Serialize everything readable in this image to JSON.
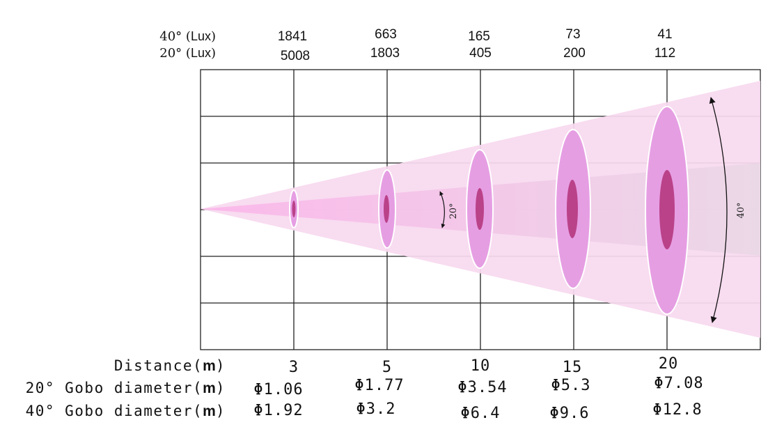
{
  "lux_rows": [
    {
      "angle": "40°",
      "unit": "Lux",
      "values": [
        "1841",
        "663",
        "165",
        "73",
        "41"
      ]
    },
    {
      "angle": "20°",
      "unit": "Lux",
      "values": [
        "5008",
        "1803",
        "405",
        "200",
        "112"
      ]
    }
  ],
  "distance": {
    "label": "Distance",
    "unit": "m",
    "values": [
      "3",
      "5",
      "10",
      "15",
      "20"
    ]
  },
  "gobo_20": {
    "label": "20° Gobo diameter",
    "unit": "m",
    "values": [
      "Φ1.06",
      "Φ1.77",
      "Φ3.54",
      "Φ5.3",
      "Φ7.08"
    ]
  },
  "gobo_40": {
    "label": "40° Gobo diameter",
    "unit": "m",
    "values": [
      "Φ1.92",
      "Φ3.2",
      "Φ6.4",
      "Φ9.6",
      "Φ12.8"
    ]
  },
  "beam_labels": {
    "narrow": "20°",
    "wide": "40°"
  },
  "colors": {
    "wide_beam": "#f6d8ee",
    "narrow_beam": "#f2c6e6",
    "wide_ellipse": "#e69ee3",
    "narrow_ellipse": "#b94288",
    "grid": "#222222"
  }
}
